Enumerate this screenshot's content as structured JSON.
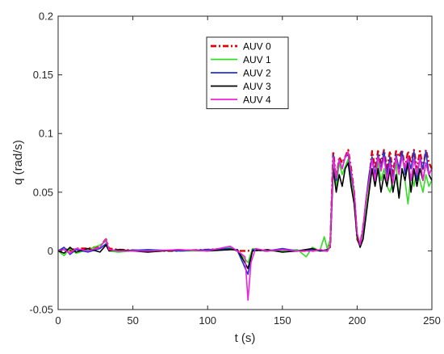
{
  "chart_data": {
    "type": "line",
    "xlabel": "t (s)",
    "ylabel": "q (rad/s)",
    "xlim": [
      0,
      250
    ],
    "ylim": [
      -0.05,
      0.2
    ],
    "xticks": [
      0,
      50,
      100,
      150,
      200,
      250
    ],
    "yticks": [
      -0.05,
      0,
      0.05,
      0.1,
      0.15,
      0.2
    ],
    "xtick_labels": [
      "0",
      "50",
      "100",
      "150",
      "200",
      "250"
    ],
    "ytick_labels": [
      "-0.05",
      "0",
      "0.05",
      "0.1",
      "0.15",
      "0.2"
    ],
    "grid": false,
    "legend_position": "top-center",
    "series": [
      {
        "name": "AUV 0",
        "color": "#e00000",
        "dash": "dash-dot",
        "x": [
          0,
          4,
          8,
          12,
          20,
          28,
          32,
          34,
          40,
          60,
          80,
          100,
          115,
          120,
          127,
          130,
          140,
          150,
          160,
          170,
          175,
          180,
          182,
          184,
          186,
          188,
          190,
          192,
          194,
          196,
          198,
          200,
          202,
          204,
          206,
          208,
          210,
          212,
          214,
          216,
          218,
          220,
          222,
          224,
          226,
          228,
          230,
          232,
          234,
          236,
          238,
          240,
          242,
          244,
          246,
          248,
          250
        ],
        "y": [
          0,
          0.002,
          0.0,
          0.002,
          0.002,
          0.004,
          0.01,
          0.002,
          0.001,
          0.0,
          0.0,
          0.001,
          0.002,
          0.0,
          0.0,
          0.001,
          0.0,
          0.001,
          0.0,
          0.0,
          0.001,
          0.0,
          0.005,
          0.085,
          0.06,
          0.08,
          0.075,
          0.08,
          0.086,
          0.07,
          0.05,
          0.01,
          0.005,
          0.02,
          0.04,
          0.06,
          0.085,
          0.07,
          0.085,
          0.075,
          0.086,
          0.07,
          0.085,
          0.065,
          0.085,
          0.08,
          0.086,
          0.07,
          0.085,
          0.075,
          0.086,
          0.07,
          0.085,
          0.07,
          0.086,
          0.075,
          0.07
        ]
      },
      {
        "name": "AUV 1",
        "color": "#33dd22",
        "dash": "solid",
        "x": [
          0,
          4,
          8,
          12,
          20,
          28,
          32,
          34,
          40,
          60,
          80,
          100,
          115,
          120,
          127,
          130,
          140,
          150,
          160,
          166,
          170,
          175,
          178,
          180,
          182,
          184,
          186,
          188,
          190,
          192,
          194,
          196,
          198,
          200,
          202,
          204,
          206,
          208,
          210,
          212,
          214,
          216,
          218,
          220,
          222,
          224,
          226,
          228,
          230,
          232,
          234,
          236,
          238,
          240,
          242,
          244,
          246,
          248,
          250
        ],
        "y": [
          0,
          -0.004,
          0.002,
          -0.002,
          0.001,
          0.005,
          0.008,
          0.0,
          -0.001,
          0.001,
          0.0,
          0.0,
          0.003,
          0.0,
          -0.01,
          0.002,
          0.0,
          0.0,
          0.001,
          -0.005,
          0.003,
          0.0,
          0.012,
          0.002,
          0.01,
          0.078,
          0.055,
          0.075,
          0.065,
          0.072,
          0.078,
          0.06,
          0.045,
          0.01,
          0.008,
          0.015,
          0.035,
          0.055,
          0.07,
          0.055,
          0.075,
          0.06,
          0.07,
          0.055,
          0.05,
          0.06,
          0.075,
          0.045,
          0.07,
          0.06,
          0.04,
          0.065,
          0.055,
          0.07,
          0.06,
          0.05,
          0.065,
          0.055,
          0.06
        ]
      },
      {
        "name": "AUV 2",
        "color": "#2233cc",
        "dash": "solid",
        "x": [
          0,
          4,
          8,
          12,
          20,
          28,
          32,
          34,
          40,
          60,
          80,
          100,
          115,
          120,
          127,
          130,
          140,
          150,
          160,
          170,
          175,
          180,
          182,
          184,
          186,
          188,
          190,
          192,
          194,
          196,
          198,
          200,
          202,
          204,
          206,
          208,
          210,
          212,
          214,
          216,
          218,
          220,
          222,
          224,
          226,
          228,
          230,
          232,
          234,
          236,
          238,
          240,
          242,
          244,
          246,
          248,
          250
        ],
        "y": [
          0,
          0.003,
          -0.003,
          0.001,
          -0.001,
          0.002,
          0.006,
          0.001,
          0.0,
          0.001,
          0.0,
          0.001,
          0.002,
          0.0,
          -0.02,
          0.001,
          0.0,
          0.002,
          0.0,
          0.001,
          0.0,
          0.0,
          0.004,
          0.082,
          0.06,
          0.078,
          0.07,
          0.08,
          0.082,
          0.065,
          0.05,
          0.015,
          0.004,
          0.02,
          0.045,
          0.065,
          0.08,
          0.065,
          0.082,
          0.07,
          0.085,
          0.065,
          0.08,
          0.06,
          0.082,
          0.07,
          0.085,
          0.065,
          0.08,
          0.07,
          0.085,
          0.06,
          0.08,
          0.07,
          0.085,
          0.065,
          0.07
        ]
      },
      {
        "name": "AUV 3",
        "color": "#000000",
        "dash": "solid",
        "x": [
          0,
          4,
          8,
          12,
          20,
          28,
          32,
          34,
          40,
          60,
          80,
          100,
          115,
          120,
          127,
          130,
          140,
          150,
          160,
          170,
          175,
          180,
          182,
          184,
          186,
          188,
          190,
          192,
          194,
          196,
          198,
          200,
          202,
          204,
          206,
          208,
          210,
          212,
          214,
          216,
          218,
          220,
          222,
          224,
          226,
          228,
          230,
          232,
          234,
          236,
          238,
          240,
          242,
          244,
          246,
          248,
          250
        ],
        "y": [
          0,
          -0.002,
          0.003,
          -0.001,
          0.002,
          -0.001,
          0.005,
          0.0,
          0.001,
          -0.001,
          0.001,
          0.0,
          0.001,
          0.001,
          -0.015,
          0.0,
          0.001,
          -0.001,
          0.0,
          0.002,
          0.0,
          0.001,
          0.003,
          0.07,
          0.05,
          0.065,
          0.055,
          0.07,
          0.075,
          0.055,
          0.04,
          0.012,
          0.003,
          0.01,
          0.03,
          0.05,
          0.07,
          0.055,
          0.07,
          0.05,
          0.065,
          0.055,
          0.07,
          0.05,
          0.065,
          0.045,
          0.07,
          0.06,
          0.075,
          0.05,
          0.07,
          0.055,
          0.07,
          0.06,
          0.075,
          0.065,
          0.06
        ]
      },
      {
        "name": "AUV 4",
        "color": "#ee22dd",
        "dash": "solid",
        "x": [
          0,
          4,
          8,
          12,
          20,
          28,
          32,
          34,
          40,
          60,
          80,
          100,
          115,
          120,
          125,
          127,
          129,
          132,
          140,
          150,
          160,
          170,
          175,
          180,
          182,
          184,
          186,
          188,
          190,
          192,
          194,
          196,
          198,
          200,
          202,
          204,
          206,
          208,
          210,
          212,
          214,
          216,
          218,
          220,
          222,
          224,
          226,
          228,
          230,
          232,
          234,
          236,
          238,
          240,
          242,
          244,
          246,
          248,
          250
        ],
        "y": [
          0,
          0.001,
          -0.002,
          0.002,
          0.0,
          0.003,
          0.01,
          0.001,
          0.0,
          0.0,
          0.001,
          0.0,
          0.004,
          0.0,
          -0.005,
          -0.042,
          -0.01,
          0.002,
          0.0,
          0.001,
          0.0,
          0.0,
          0.001,
          0.0,
          0.004,
          0.08,
          0.062,
          0.078,
          0.07,
          0.08,
          0.084,
          0.068,
          0.05,
          0.015,
          0.005,
          0.02,
          0.045,
          0.06,
          0.078,
          0.06,
          0.08,
          0.068,
          0.08,
          0.06,
          0.075,
          0.058,
          0.08,
          0.065,
          0.08,
          0.07,
          0.08,
          0.06,
          0.078,
          0.065,
          0.08,
          0.06,
          0.075,
          0.065,
          0.07
        ]
      }
    ]
  }
}
